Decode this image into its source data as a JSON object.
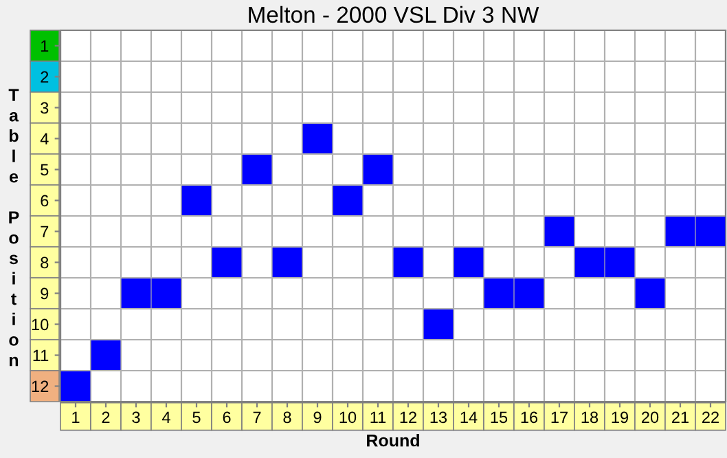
{
  "chart_data": {
    "type": "scatter",
    "title": "Melton - 2000 VSL Div 3 NW",
    "xlabel": "Round",
    "ylabel": "Table Position",
    "categories": [
      "1",
      "2",
      "3",
      "4",
      "5",
      "6",
      "7",
      "8",
      "9",
      "10",
      "11",
      "12",
      "13",
      "14",
      "15",
      "16",
      "17",
      "18",
      "19",
      "20",
      "21",
      "22"
    ],
    "series": [
      {
        "color": "#0000ff",
        "values": [
          12,
          11,
          9,
          9,
          6,
          8,
          5,
          8,
          4,
          6,
          5,
          8,
          10,
          8,
          9,
          9,
          7,
          8,
          8,
          9,
          7,
          7
        ]
      }
    ],
    "ylim": [
      12.5,
      0.5
    ],
    "yticks": [
      1,
      2,
      3,
      4,
      5,
      6,
      7,
      8,
      9,
      10,
      11,
      12
    ],
    "marker": "square",
    "grid": true,
    "legend": false
  }
}
